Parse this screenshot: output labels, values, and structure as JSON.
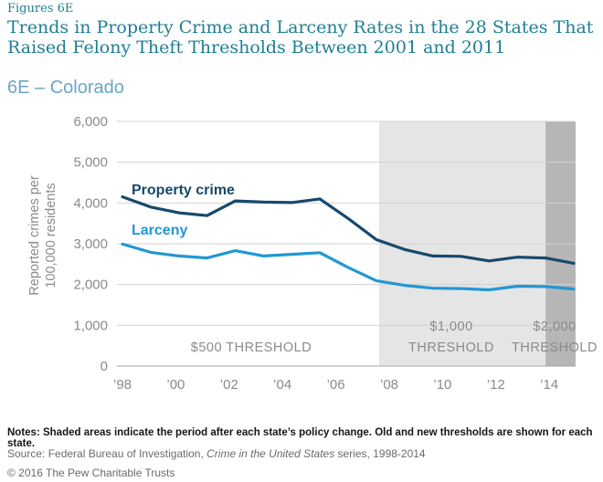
{
  "header": {
    "figure_label": "Figures 6E",
    "title": "Trends in Property Crime and Larceny Rates in the 28 States That Raised Felony Theft Thresholds Between 2001 and 2011",
    "subtitle": "6E – Colorado"
  },
  "chart_data": {
    "type": "line",
    "title": "6E – Colorado",
    "ylabel": "Reported crimes per 100,000 residents",
    "ylabel_lines": [
      "Reported crimes per",
      "100,000 residents"
    ],
    "ylim": [
      0,
      6000
    ],
    "ytick_step": 1000,
    "ytick_labels": [
      "0",
      "1,000",
      "2,000",
      "3,000",
      "4,000",
      "5,000",
      "6,000"
    ],
    "x": [
      1998,
      1999,
      2000,
      2001,
      2002,
      2003,
      2004,
      2005,
      2006,
      2007,
      2008,
      2009,
      2010,
      2011,
      2012,
      2013,
      2014
    ],
    "xtick_labels": [
      "’98",
      "’00",
      "’02",
      "’04",
      "’06",
      "’08",
      "’10",
      "’12",
      "’14"
    ],
    "grid": true,
    "series": [
      {
        "name": "Property crime",
        "color": "#17496c",
        "values": [
          4150,
          3900,
          3760,
          3690,
          4050,
          4020,
          4010,
          4100,
          3620,
          3100,
          2860,
          2700,
          2690,
          2580,
          2670,
          2650,
          2520
        ]
      },
      {
        "name": "Larceny",
        "color": "#2297d3",
        "values": [
          2990,
          2790,
          2700,
          2650,
          2830,
          2700,
          2740,
          2780,
          2420,
          2090,
          1980,
          1910,
          1900,
          1870,
          1960,
          1950,
          1890
        ]
      }
    ],
    "thresholds": [
      {
        "lines": [
          "$500 THRESHOLD"
        ],
        "from": 1998,
        "to": 2007.1,
        "shade": "none"
      },
      {
        "lines": [
          "$1,000",
          "THRESHOLD"
        ],
        "from": 2007.1,
        "to": 2013,
        "shade": "light"
      },
      {
        "lines": [
          "$2,000",
          "THRESHOLD"
        ],
        "from": 2013,
        "to": 2014.07,
        "shade": "dark"
      }
    ]
  },
  "colors": {
    "title_teal": "#1e7e95",
    "subtitle_blue": "#6aa5c5",
    "band_light": "#e5e5e5",
    "band_dark": "#b6b6b6",
    "gridline": "#d2d2d2",
    "axis_line": "#a6a6a6",
    "axis_text": "#8a8a8a",
    "threshold_text": "#8a8a8a"
  },
  "footer": {
    "notes": "Notes: Shaded areas indicate the period after each state’s policy change. Old and new thresholds are shown for each state.",
    "source_prefix": "Source: Federal Bureau of Investigation, ",
    "source_italic": "Crime in the United States",
    "source_suffix": " series, 1998-2014",
    "copyright": "© 2016 The Pew Charitable Trusts"
  }
}
